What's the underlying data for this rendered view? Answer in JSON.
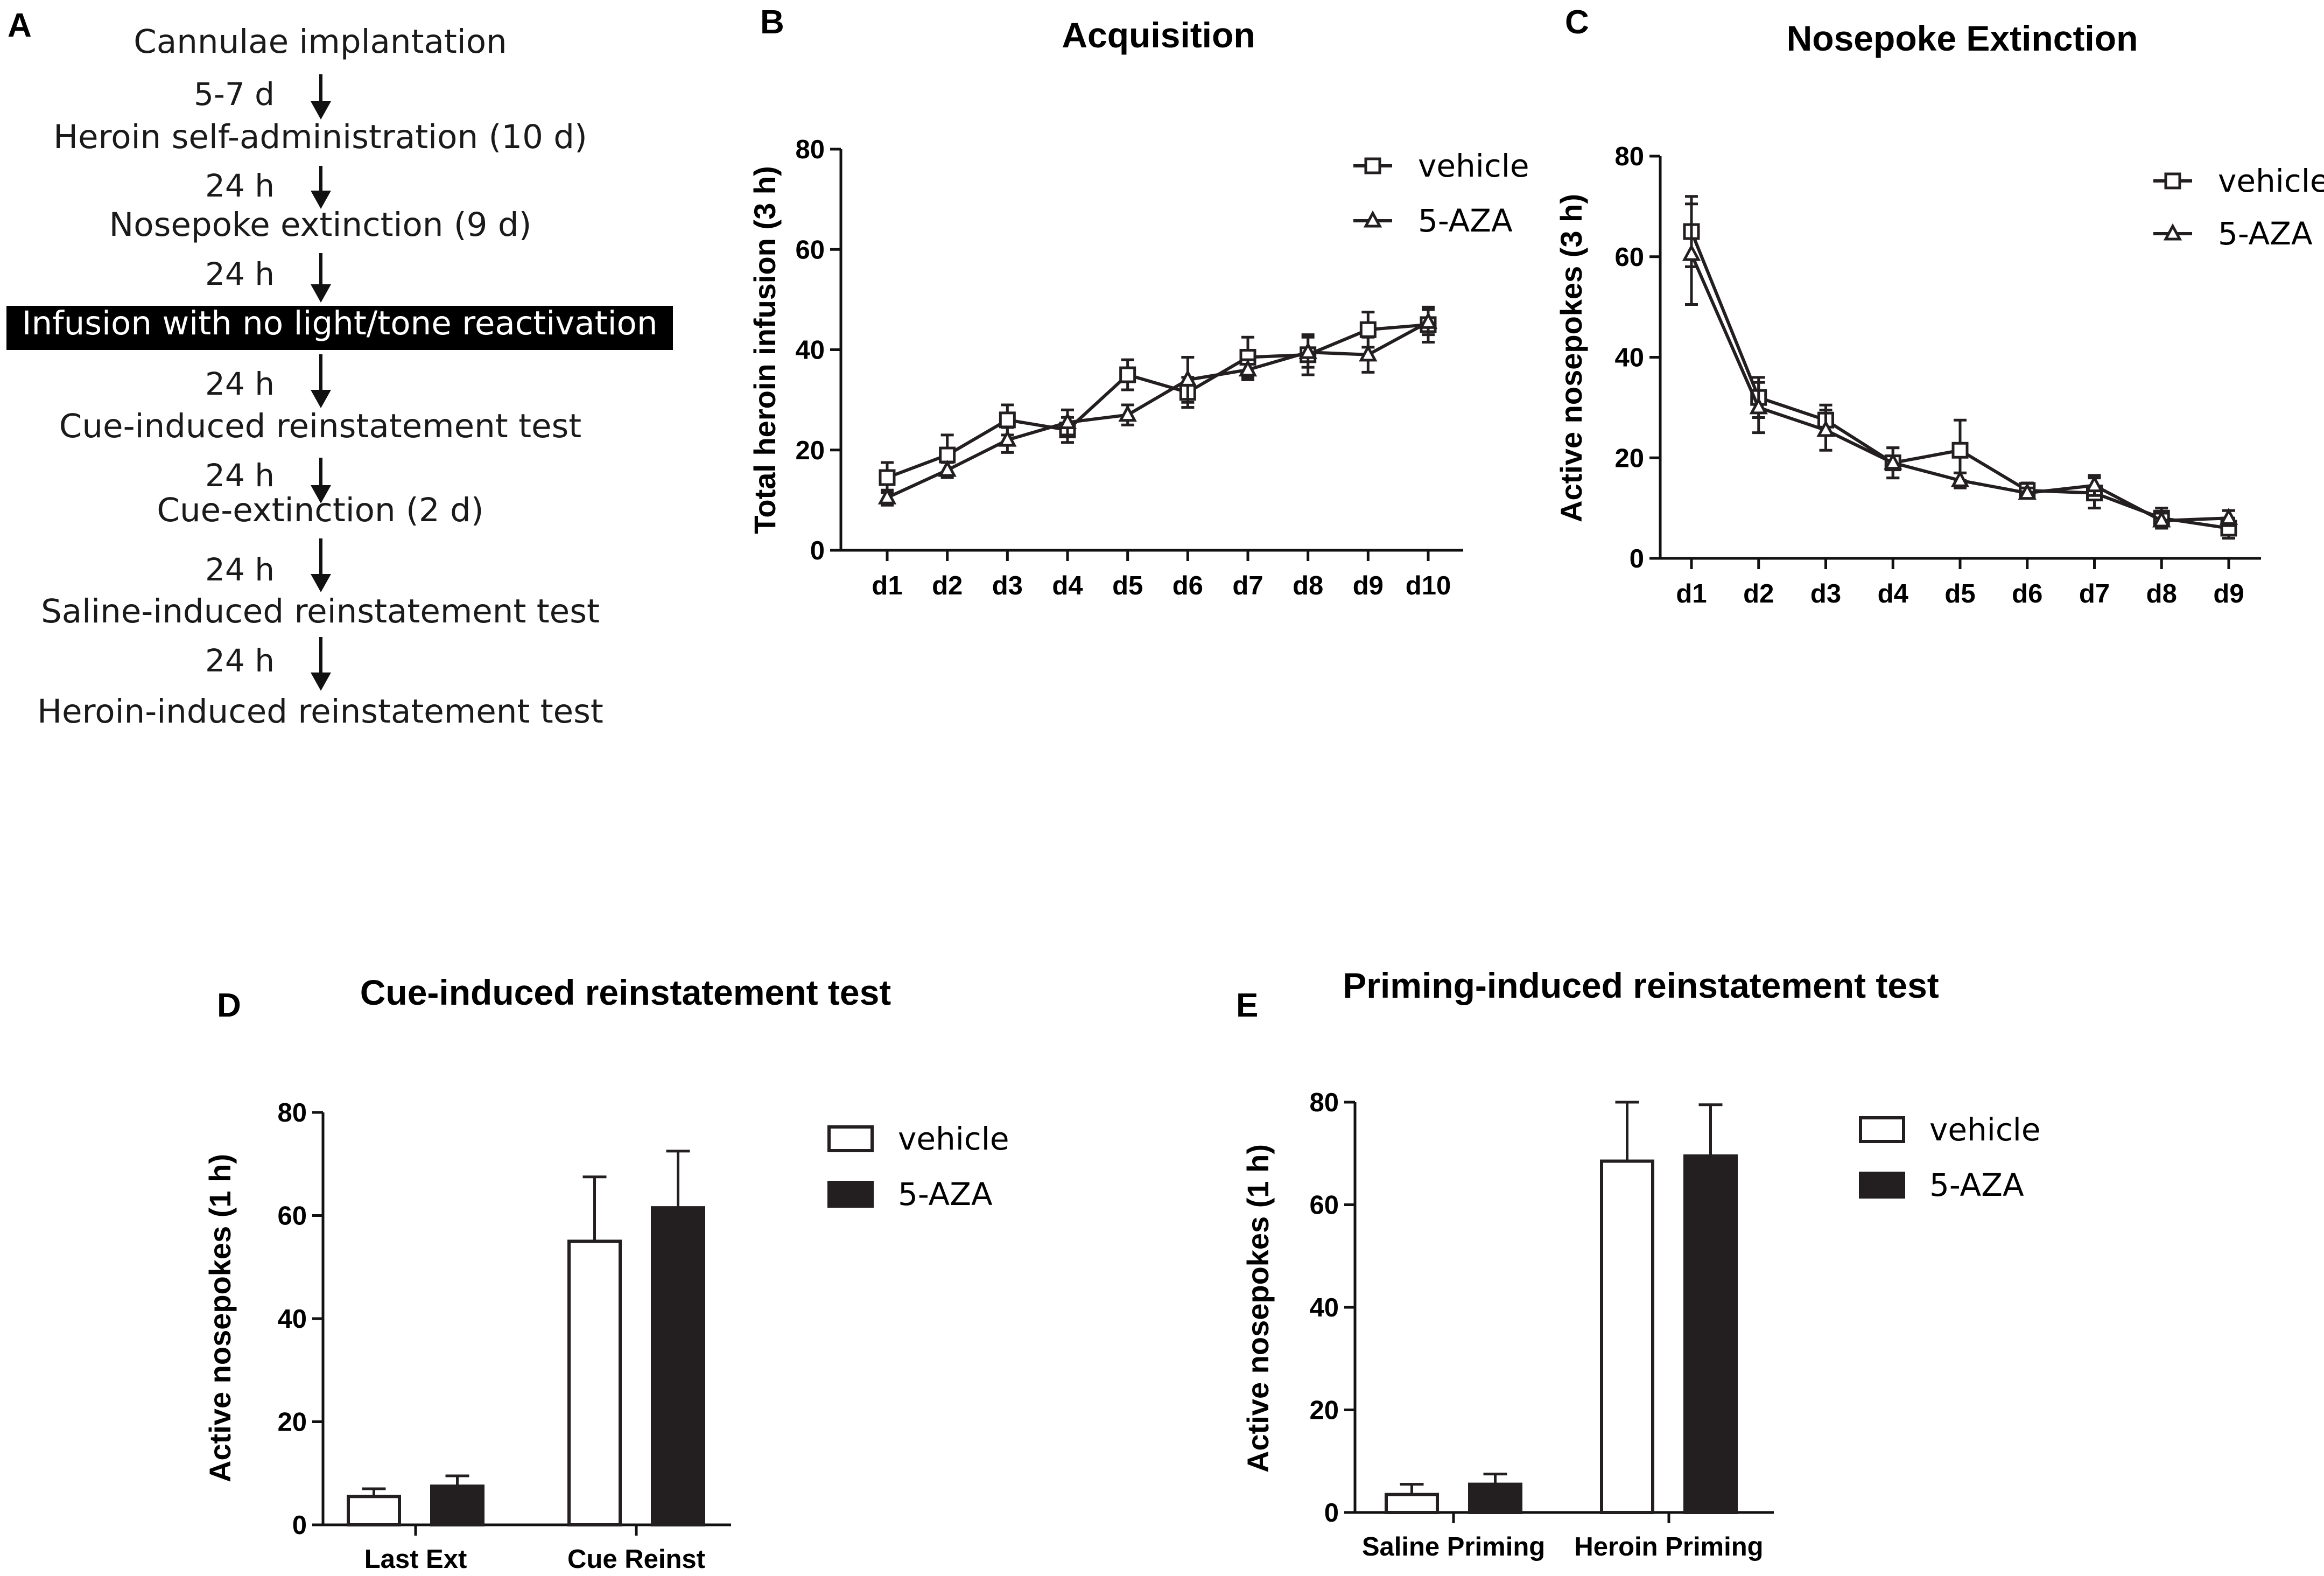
{
  "panels": {
    "a": "A",
    "b": "B",
    "c": "C",
    "d": "D",
    "e": "E"
  },
  "flowchart": {
    "steps": [
      "Cannulae implantation",
      "Heroin self-administration (10 d)",
      "Nosepoke extinction (9 d)",
      "Infusion with no light/tone reactivation",
      "Cue-induced reinstatement test",
      "Cue-extinction (2 d)",
      "Saline-induced reinstatement test",
      "Heroin-induced reinstatement test"
    ],
    "intervals": [
      "5-7 d",
      "24 h",
      "24 h",
      "24 h",
      "24 h",
      "24 h",
      "24 h"
    ],
    "highlight_color": "#000000"
  },
  "chart_data": [
    {
      "id": "B",
      "type": "line",
      "title": "Acquisition",
      "xlabel": "",
      "ylabel": "Total heroin infusion (3 h)",
      "categories": [
        "d1",
        "d2",
        "d3",
        "d4",
        "d5",
        "d6",
        "d7",
        "d8",
        "d9",
        "d10"
      ],
      "ylim": [
        0,
        80
      ],
      "yticks": [
        0,
        20,
        40,
        60,
        80
      ],
      "legend_position": "top-right",
      "series": [
        {
          "name": "vehicle",
          "marker": "square",
          "values": [
            14.5,
            19,
            26,
            24,
            35,
            31.5,
            38.5,
            39,
            44,
            45
          ],
          "errors": [
            3,
            4,
            3,
            2.5,
            3,
            3,
            4,
            4,
            3.5,
            3.5
          ]
        },
        {
          "name": "5-AZA",
          "marker": "triangle",
          "values": [
            10.5,
            16,
            22,
            25.5,
            27,
            34,
            36,
            39.5,
            39,
            45.5
          ],
          "errors": [
            1.5,
            1.5,
            2.5,
            2.5,
            2,
            4.5,
            2,
            3,
            3.5,
            2.5
          ]
        }
      ]
    },
    {
      "id": "C",
      "type": "line",
      "title": "Nosepoke Extinction",
      "xlabel": "",
      "ylabel": "Active nosepokes (3 h)",
      "categories": [
        "d1",
        "d2",
        "d3",
        "d4",
        "d5",
        "d6",
        "d7",
        "d8",
        "d9"
      ],
      "ylim": [
        0,
        80
      ],
      "yticks": [
        0,
        20,
        40,
        60,
        80
      ],
      "legend_position": "top-right",
      "series": [
        {
          "name": "vehicle",
          "marker": "square",
          "values": [
            65,
            32,
            27.5,
            19,
            21.5,
            13.5,
            13,
            8,
            6
          ],
          "errors": [
            7,
            4,
            3,
            3,
            6,
            1.5,
            3,
            2,
            2
          ]
        },
        {
          "name": "5-AZA",
          "marker": "triangle",
          "values": [
            60.5,
            30,
            25.5,
            19,
            15.5,
            13,
            14.5,
            7.5,
            8
          ],
          "errors": [
            10,
            5,
            4,
            3,
            1.5,
            1,
            2,
            1.5,
            1.5
          ]
        }
      ]
    },
    {
      "id": "D",
      "type": "bar",
      "title": "Cue-induced reinstatement test",
      "xlabel": "",
      "ylabel": "Active nosepokes (1 h)",
      "categories": [
        "Last Ext",
        "Cue Reinst"
      ],
      "ylim": [
        0,
        80
      ],
      "yticks": [
        0,
        20,
        40,
        60,
        80
      ],
      "legend_position": "top-right",
      "series": [
        {
          "name": "vehicle",
          "fill": "#ffffff",
          "values": [
            5.5,
            55
          ],
          "errors": [
            1.5,
            12.5
          ]
        },
        {
          "name": "5-AZA",
          "fill": "#231f20",
          "values": [
            7.5,
            61.5
          ],
          "errors": [
            2,
            11
          ]
        }
      ]
    },
    {
      "id": "E",
      "type": "bar",
      "title": "Priming-induced reinstatement test",
      "xlabel": "",
      "ylabel": "Active nosepokes (1 h)",
      "categories": [
        "Saline Priming",
        "Heroin Priming"
      ],
      "ylim": [
        0,
        80
      ],
      "yticks": [
        0,
        20,
        40,
        60,
        80
      ],
      "legend_position": "top-right",
      "series": [
        {
          "name": "vehicle",
          "fill": "#ffffff",
          "values": [
            3.5,
            68.5
          ],
          "errors": [
            2,
            11.5
          ]
        },
        {
          "name": "5-AZA",
          "fill": "#231f20",
          "values": [
            5.5,
            69.5
          ],
          "errors": [
            2,
            10
          ]
        }
      ]
    }
  ]
}
